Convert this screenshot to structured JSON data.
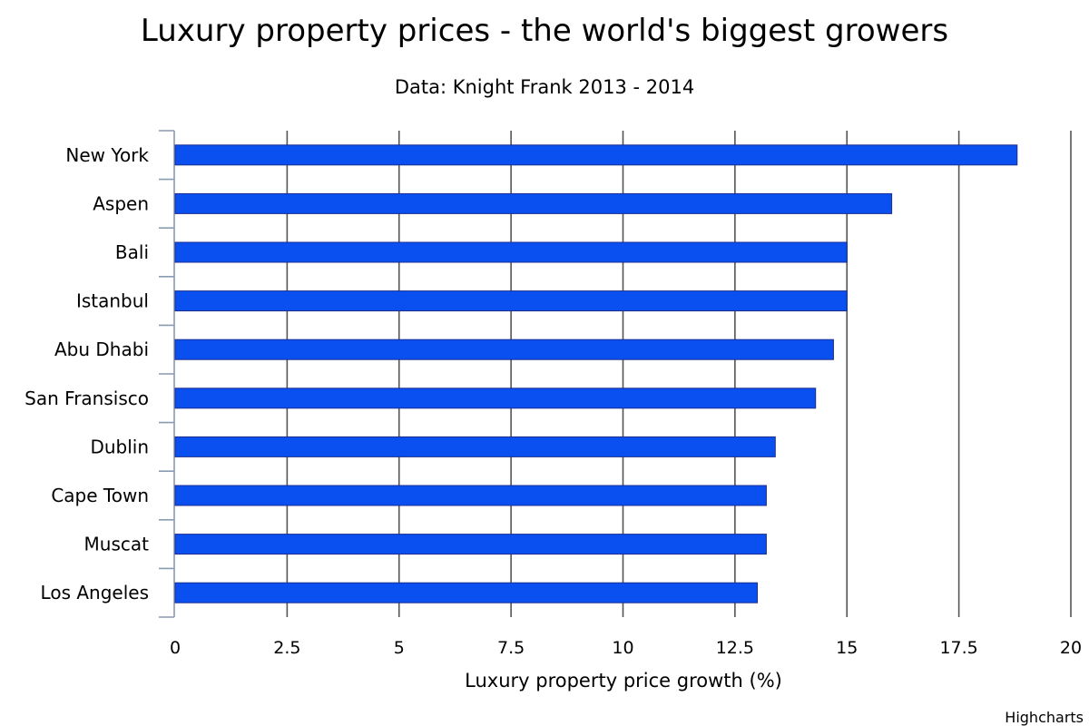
{
  "chart_data": {
    "type": "bar",
    "orientation": "horizontal",
    "title": "Luxury property prices - the world's biggest growers",
    "subtitle": "Data: Knight Frank 2013 - 2014",
    "xlabel": "",
    "ylabel": "Luxury property price growth (%)",
    "categories": [
      "New York",
      "Aspen",
      "Bali",
      "Istanbul",
      "Abu Dhabi",
      "San Fransisco",
      "Dublin",
      "Cape Town",
      "Muscat",
      "Los Angeles"
    ],
    "series": [
      {
        "values": [
          18.8,
          16.0,
          15.0,
          15.0,
          14.7,
          14.3,
          13.4,
          13.2,
          13.2,
          13.0
        ]
      }
    ],
    "ylim": [
      0,
      20
    ],
    "ticks": [
      "0",
      "2.5",
      "5",
      "7.5",
      "10",
      "12.5",
      "15",
      "17.5",
      "20"
    ],
    "tick_values": [
      0,
      2.5,
      5,
      7.5,
      10,
      12.5,
      15,
      17.5,
      20
    ],
    "grid": true,
    "legend": "none",
    "bar_color": "#0a4ff0",
    "bar_border_color": "#1c2f8f"
  },
  "credit": "Highcharts"
}
